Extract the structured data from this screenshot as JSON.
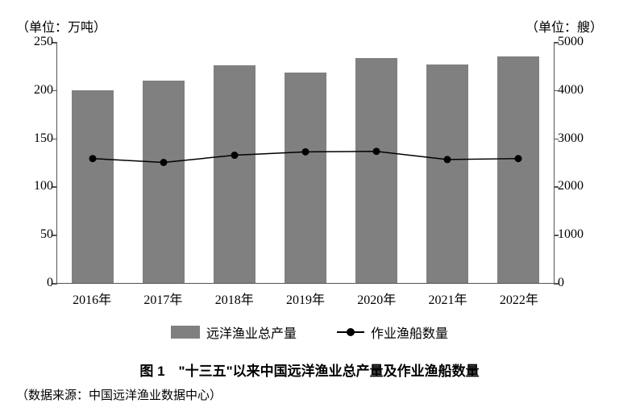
{
  "chart": {
    "type": "bar+line",
    "left_unit": "（单位：万吨）",
    "right_unit": "（单位：艘）",
    "categories": [
      "2016年",
      "2017年",
      "2018年",
      "2019年",
      "2020年",
      "2021年",
      "2022年"
    ],
    "bar_series": {
      "name": "远洋渔业总产量",
      "values": [
        200,
        210,
        226,
        218,
        233,
        227,
        235
      ],
      "color": "#808080",
      "bar_width": 0.6,
      "y_axis": "left"
    },
    "line_series": {
      "name": "作业渔船数量",
      "values": [
        2580,
        2500,
        2650,
        2720,
        2730,
        2560,
        2580
      ],
      "color": "#000000",
      "marker": "circle",
      "marker_size": 9,
      "line_width": 1.5,
      "y_axis": "right"
    },
    "y_left": {
      "min": 0,
      "max": 250,
      "step": 50
    },
    "y_right": {
      "min": 0,
      "max": 5000,
      "step": 1000
    },
    "background_color": "#ffffff",
    "axis_color": "#555555",
    "font_family": "SimSun",
    "label_fontsize": 16
  },
  "legend": {
    "bar_label": "远洋渔业总产量",
    "line_label": "作业渔船数量"
  },
  "caption": "图 1　\"十三五\"以来中国远洋渔业总产量及作业渔船数量",
  "source": "（数据来源：中国远洋渔业数据中心）"
}
